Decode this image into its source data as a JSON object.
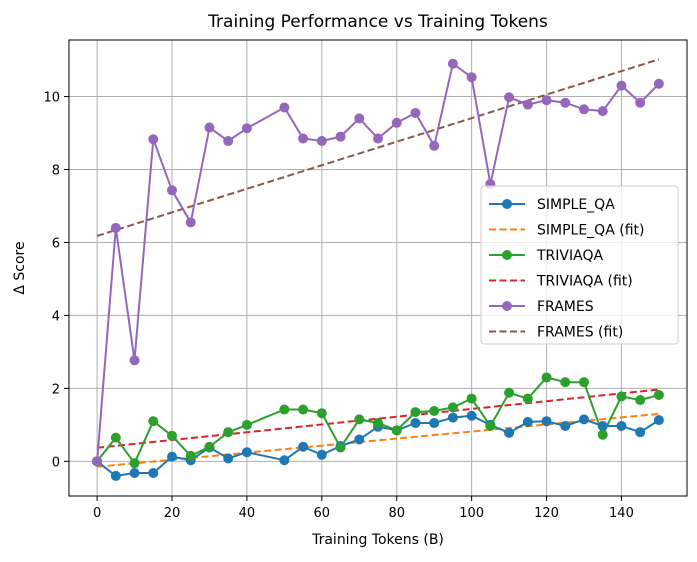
{
  "chart_data": {
    "type": "line",
    "title": "Training Performance vs Training Tokens",
    "xlabel": "Training Tokens (B)",
    "ylabel": "Δ Score",
    "xlim": [
      -7.5,
      157.5
    ],
    "ylim": [
      -0.95,
      11.55
    ],
    "xticks": [
      0,
      20,
      40,
      60,
      80,
      100,
      120,
      140
    ],
    "yticks": [
      0,
      2,
      4,
      6,
      8,
      10
    ],
    "grid": true,
    "legend_position": "center-right",
    "x": [
      0,
      5,
      10,
      15,
      20,
      25,
      30,
      35,
      40,
      50,
      55,
      60,
      65,
      70,
      75,
      80,
      85,
      90,
      95,
      100,
      105,
      110,
      115,
      120,
      125,
      130,
      135,
      140,
      145,
      150
    ],
    "series": [
      {
        "name": "SIMPLE_QA",
        "color": "#1f77b4",
        "style": "line-marker",
        "values": [
          0.0,
          -0.4,
          -0.32,
          -0.32,
          0.13,
          0.03,
          0.38,
          0.08,
          0.25,
          0.03,
          0.4,
          0.18,
          0.42,
          0.6,
          0.95,
          0.85,
          1.05,
          1.05,
          1.2,
          1.25,
          1.0,
          0.78,
          1.08,
          1.1,
          0.97,
          1.15,
          0.97,
          0.97,
          0.8,
          1.13
        ]
      },
      {
        "name": "SIMPLE_QA (fit)",
        "color": "#ff7f0e",
        "style": "dashed",
        "x": [
          0,
          150
        ],
        "values": [
          -0.15,
          1.3
        ]
      },
      {
        "name": "TRIVIAQA",
        "color": "#2ca02c",
        "style": "line-marker",
        "values": [
          0.0,
          0.65,
          -0.05,
          1.1,
          0.7,
          0.15,
          0.4,
          0.8,
          1.0,
          1.42,
          1.42,
          1.32,
          0.38,
          1.15,
          1.05,
          0.85,
          1.35,
          1.38,
          1.48,
          1.72,
          0.97,
          1.88,
          1.72,
          2.3,
          2.17,
          2.17,
          0.73,
          1.78,
          1.68,
          1.82
        ]
      },
      {
        "name": "TRIVIAQA (fit)",
        "color": "#d62728",
        "style": "dashed",
        "x": [
          0,
          150
        ],
        "values": [
          0.37,
          1.97
        ]
      },
      {
        "name": "FRAMES",
        "color": "#9467bd",
        "style": "line-marker",
        "values": [
          0.0,
          6.4,
          2.77,
          8.83,
          7.43,
          6.55,
          9.15,
          8.78,
          9.13,
          9.7,
          8.85,
          8.78,
          8.9,
          9.4,
          8.85,
          9.28,
          9.55,
          8.65,
          10.9,
          10.53,
          7.6,
          9.98,
          9.78,
          9.9,
          9.83,
          9.65,
          9.6,
          10.3,
          9.83,
          10.35
        ]
      },
      {
        "name": "FRAMES (fit)",
        "color": "#8c564b",
        "style": "dashed",
        "x": [
          0,
          150
        ],
        "values": [
          6.18,
          11.02
        ]
      }
    ]
  }
}
